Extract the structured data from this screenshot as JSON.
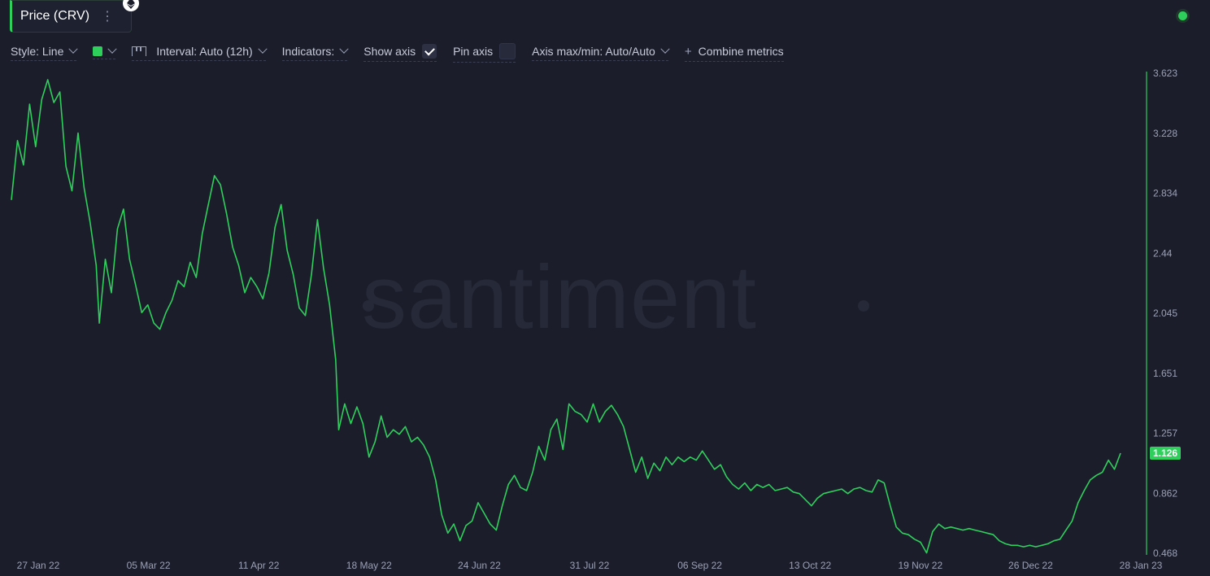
{
  "metric_tab": {
    "label": "Price (CRV)",
    "menu_icon": "kebab-menu-icon",
    "badge_icon": "ethereum-icon"
  },
  "status_icon": "status-dot-icon",
  "toolbar": {
    "style_label": "Style: Line",
    "interval_label": "Interval: Auto (12h)",
    "indicators_label": "Indicators:",
    "show_axis_label": "Show axis",
    "show_axis_checked": true,
    "pin_axis_label": "Pin axis",
    "pin_axis_checked": false,
    "axis_label": "Axis max/min: Auto/Auto",
    "combine_label": "Combine metrics"
  },
  "watermark": "santiment",
  "colors": {
    "line": "#2fcf5c",
    "background": "#1b1d2b",
    "tick_text": "#9aa0b5"
  },
  "chart_data": {
    "type": "line",
    "title": "",
    "series": [
      {
        "name": "Price (CRV)",
        "values": [
          [
            "2022-01-22",
            2.79
          ],
          [
            "2022-01-24",
            3.18
          ],
          [
            "2022-01-26",
            3.02
          ],
          [
            "2022-01-28",
            3.42
          ],
          [
            "2022-01-30",
            3.14
          ],
          [
            "2022-02-01",
            3.45
          ],
          [
            "2022-02-03",
            3.58
          ],
          [
            "2022-02-05",
            3.43
          ],
          [
            "2022-02-07",
            3.5
          ],
          [
            "2022-02-09",
            3.01
          ],
          [
            "2022-02-11",
            2.85
          ],
          [
            "2022-02-13",
            3.23
          ],
          [
            "2022-02-15",
            2.87
          ],
          [
            "2022-02-17",
            2.64
          ],
          [
            "2022-02-19",
            2.36
          ],
          [
            "2022-02-20",
            1.98
          ],
          [
            "2022-02-22",
            2.4
          ],
          [
            "2022-02-24",
            2.18
          ],
          [
            "2022-02-26",
            2.6
          ],
          [
            "2022-02-28",
            2.73
          ],
          [
            "2022-03-02",
            2.4
          ],
          [
            "2022-03-04",
            2.23
          ],
          [
            "2022-03-06",
            2.05
          ],
          [
            "2022-03-08",
            2.1
          ],
          [
            "2022-03-10",
            1.98
          ],
          [
            "2022-03-12",
            1.94
          ],
          [
            "2022-03-14",
            2.05
          ],
          [
            "2022-03-16",
            2.13
          ],
          [
            "2022-03-18",
            2.26
          ],
          [
            "2022-03-20",
            2.22
          ],
          [
            "2022-03-22",
            2.38
          ],
          [
            "2022-03-24",
            2.28
          ],
          [
            "2022-03-26",
            2.57
          ],
          [
            "2022-03-28",
            2.76
          ],
          [
            "2022-03-30",
            2.95
          ],
          [
            "2022-04-01",
            2.89
          ],
          [
            "2022-04-03",
            2.7
          ],
          [
            "2022-04-05",
            2.48
          ],
          [
            "2022-04-07",
            2.36
          ],
          [
            "2022-04-09",
            2.18
          ],
          [
            "2022-04-11",
            2.28
          ],
          [
            "2022-04-13",
            2.22
          ],
          [
            "2022-04-15",
            2.14
          ],
          [
            "2022-04-17",
            2.31
          ],
          [
            "2022-04-19",
            2.61
          ],
          [
            "2022-04-21",
            2.76
          ],
          [
            "2022-04-23",
            2.46
          ],
          [
            "2022-04-25",
            2.3
          ],
          [
            "2022-04-27",
            2.08
          ],
          [
            "2022-04-29",
            2.03
          ],
          [
            "2022-05-01",
            2.3
          ],
          [
            "2022-05-03",
            2.66
          ],
          [
            "2022-05-05",
            2.34
          ],
          [
            "2022-05-07",
            2.1
          ],
          [
            "2022-05-09",
            1.74
          ],
          [
            "2022-05-10",
            1.28
          ],
          [
            "2022-05-12",
            1.45
          ],
          [
            "2022-05-14",
            1.32
          ],
          [
            "2022-05-16",
            1.43
          ],
          [
            "2022-05-18",
            1.32
          ],
          [
            "2022-05-20",
            1.1
          ],
          [
            "2022-05-22",
            1.2
          ],
          [
            "2022-05-24",
            1.37
          ],
          [
            "2022-05-26",
            1.23
          ],
          [
            "2022-05-28",
            1.28
          ],
          [
            "2022-05-30",
            1.25
          ],
          [
            "2022-06-01",
            1.3
          ],
          [
            "2022-06-03",
            1.2
          ],
          [
            "2022-06-05",
            1.23
          ],
          [
            "2022-06-07",
            1.18
          ],
          [
            "2022-06-09",
            1.1
          ],
          [
            "2022-06-11",
            0.95
          ],
          [
            "2022-06-13",
            0.72
          ],
          [
            "2022-06-15",
            0.6
          ],
          [
            "2022-06-17",
            0.66
          ],
          [
            "2022-06-19",
            0.55
          ],
          [
            "2022-06-21",
            0.65
          ],
          [
            "2022-06-23",
            0.68
          ],
          [
            "2022-06-25",
            0.8
          ],
          [
            "2022-06-27",
            0.73
          ],
          [
            "2022-06-29",
            0.66
          ],
          [
            "2022-07-01",
            0.62
          ],
          [
            "2022-07-03",
            0.78
          ],
          [
            "2022-07-05",
            0.92
          ],
          [
            "2022-07-07",
            0.98
          ],
          [
            "2022-07-09",
            0.9
          ],
          [
            "2022-07-11",
            0.88
          ],
          [
            "2022-07-13",
            1.0
          ],
          [
            "2022-07-15",
            1.17
          ],
          [
            "2022-07-17",
            1.08
          ],
          [
            "2022-07-19",
            1.28
          ],
          [
            "2022-07-21",
            1.35
          ],
          [
            "2022-07-23",
            1.15
          ],
          [
            "2022-07-25",
            1.45
          ],
          [
            "2022-07-27",
            1.4
          ],
          [
            "2022-07-29",
            1.38
          ],
          [
            "2022-07-31",
            1.33
          ],
          [
            "2022-08-02",
            1.45
          ],
          [
            "2022-08-04",
            1.33
          ],
          [
            "2022-08-06",
            1.4
          ],
          [
            "2022-08-08",
            1.44
          ],
          [
            "2022-08-10",
            1.38
          ],
          [
            "2022-08-12",
            1.3
          ],
          [
            "2022-08-14",
            1.15
          ],
          [
            "2022-08-16",
            1.0
          ],
          [
            "2022-08-18",
            1.1
          ],
          [
            "2022-08-20",
            0.96
          ],
          [
            "2022-08-22",
            1.06
          ],
          [
            "2022-08-24",
            1.01
          ],
          [
            "2022-08-26",
            1.1
          ],
          [
            "2022-08-28",
            1.05
          ],
          [
            "2022-08-30",
            1.1
          ],
          [
            "2022-09-01",
            1.07
          ],
          [
            "2022-09-03",
            1.1
          ],
          [
            "2022-09-05",
            1.08
          ],
          [
            "2022-09-07",
            1.14
          ],
          [
            "2022-09-09",
            1.08
          ],
          [
            "2022-09-11",
            1.02
          ],
          [
            "2022-09-13",
            1.05
          ],
          [
            "2022-09-15",
            0.97
          ],
          [
            "2022-09-17",
            0.92
          ],
          [
            "2022-09-19",
            0.89
          ],
          [
            "2022-09-21",
            0.93
          ],
          [
            "2022-09-23",
            0.88
          ],
          [
            "2022-09-25",
            0.92
          ],
          [
            "2022-09-27",
            0.9
          ],
          [
            "2022-09-29",
            0.92
          ],
          [
            "2022-10-01",
            0.88
          ],
          [
            "2022-10-03",
            0.89
          ],
          [
            "2022-10-05",
            0.9
          ],
          [
            "2022-10-07",
            0.87
          ],
          [
            "2022-10-09",
            0.86
          ],
          [
            "2022-10-11",
            0.82
          ],
          [
            "2022-10-13",
            0.78
          ],
          [
            "2022-10-15",
            0.83
          ],
          [
            "2022-10-17",
            0.86
          ],
          [
            "2022-10-19",
            0.87
          ],
          [
            "2022-10-21",
            0.88
          ],
          [
            "2022-10-23",
            0.89
          ],
          [
            "2022-10-25",
            0.86
          ],
          [
            "2022-10-27",
            0.89
          ],
          [
            "2022-10-29",
            0.9
          ],
          [
            "2022-10-31",
            0.88
          ],
          [
            "2022-11-02",
            0.87
          ],
          [
            "2022-11-04",
            0.95
          ],
          [
            "2022-11-06",
            0.93
          ],
          [
            "2022-11-08",
            0.78
          ],
          [
            "2022-11-10",
            0.64
          ],
          [
            "2022-11-12",
            0.6
          ],
          [
            "2022-11-14",
            0.59
          ],
          [
            "2022-11-16",
            0.56
          ],
          [
            "2022-11-18",
            0.54
          ],
          [
            "2022-11-20",
            0.47
          ],
          [
            "2022-11-22",
            0.61
          ],
          [
            "2022-11-24",
            0.66
          ],
          [
            "2022-11-26",
            0.63
          ],
          [
            "2022-11-28",
            0.64
          ],
          [
            "2022-11-30",
            0.63
          ],
          [
            "2022-12-02",
            0.62
          ],
          [
            "2022-12-04",
            0.63
          ],
          [
            "2022-12-06",
            0.62
          ],
          [
            "2022-12-08",
            0.61
          ],
          [
            "2022-12-10",
            0.6
          ],
          [
            "2022-12-12",
            0.59
          ],
          [
            "2022-12-14",
            0.55
          ],
          [
            "2022-12-16",
            0.53
          ],
          [
            "2022-12-18",
            0.52
          ],
          [
            "2022-12-20",
            0.52
          ],
          [
            "2022-12-22",
            0.51
          ],
          [
            "2022-12-24",
            0.52
          ],
          [
            "2022-12-26",
            0.51
          ],
          [
            "2022-12-28",
            0.52
          ],
          [
            "2022-12-30",
            0.53
          ],
          [
            "2023-01-01",
            0.55
          ],
          [
            "2023-01-03",
            0.56
          ],
          [
            "2023-01-05",
            0.62
          ],
          [
            "2023-01-07",
            0.68
          ],
          [
            "2023-01-09",
            0.8
          ],
          [
            "2023-01-11",
            0.88
          ],
          [
            "2023-01-13",
            0.95
          ],
          [
            "2023-01-15",
            0.98
          ],
          [
            "2023-01-17",
            1.0
          ],
          [
            "2023-01-19",
            1.08
          ],
          [
            "2023-01-21",
            1.02
          ],
          [
            "2023-01-23",
            1.126
          ]
        ]
      }
    ],
    "x_ticks": [
      "27 Jan 22",
      "05 Mar 22",
      "11 Apr 22",
      "18 May 22",
      "24 Jun 22",
      "31 Jul 22",
      "06 Sep 22",
      "13 Oct 22",
      "19 Nov 22",
      "26 Dec 22",
      "28 Jan 23"
    ],
    "y_ticks": [
      "3.623",
      "3.228",
      "2.834",
      "2.44",
      "2.045",
      "1.651",
      "1.257",
      "0.862",
      "0.468"
    ],
    "ylim": [
      0.468,
      3.623
    ],
    "xlim": [
      "2022-01-22",
      "2023-01-28"
    ],
    "last_value_label": "1.126",
    "xlabel": "",
    "ylabel": "",
    "grid": false,
    "legend": "none"
  }
}
